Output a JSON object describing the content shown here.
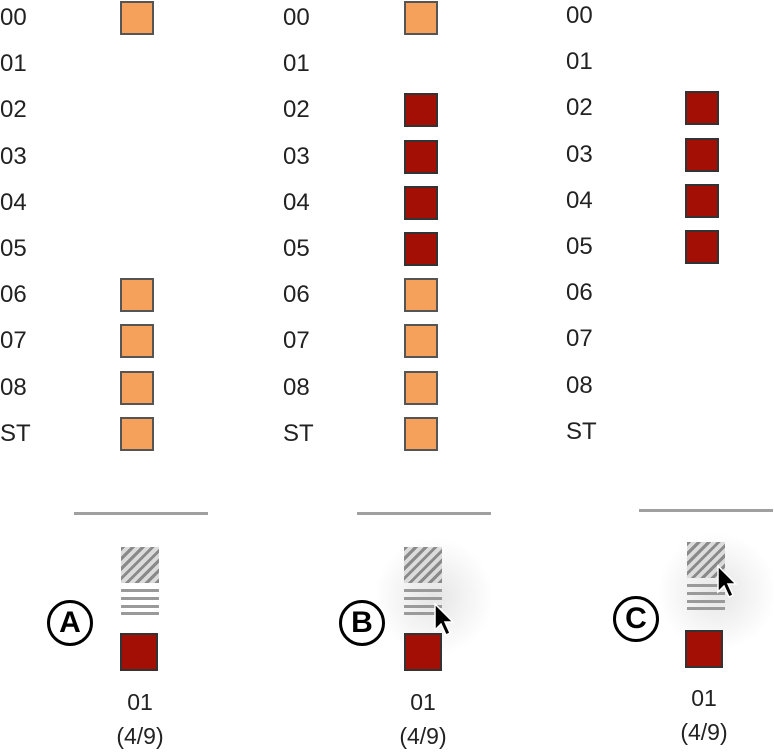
{
  "colors": {
    "visible_channel": "#f5a05b",
    "selected_channel": "#a30f05",
    "rule": "#a0a0a0"
  },
  "panels": [
    {
      "id": "A",
      "rows": [
        "00",
        "01",
        "02",
        "03",
        "04",
        "05",
        "06",
        "07",
        "08",
        "ST"
      ],
      "cells": [
        "orange",
        "none",
        "none",
        "none",
        "none",
        "none",
        "orange",
        "orange",
        "orange",
        "orange"
      ],
      "footer_channel": "01",
      "footer_count": "(4/9)",
      "cursor": false
    },
    {
      "id": "B",
      "rows": [
        "00",
        "01",
        "02",
        "03",
        "04",
        "05",
        "06",
        "07",
        "08",
        "ST"
      ],
      "cells": [
        "orange",
        "none",
        "red",
        "red",
        "red",
        "red",
        "orange",
        "orange",
        "orange",
        "orange"
      ],
      "footer_channel": "01",
      "footer_count": "(4/9)",
      "cursor": true
    },
    {
      "id": "C",
      "rows": [
        "00",
        "01",
        "02",
        "03",
        "04",
        "05",
        "06",
        "07",
        "08",
        "ST"
      ],
      "cells": [
        "none",
        "none",
        "red",
        "red",
        "red",
        "red",
        "none",
        "none",
        "none",
        "none"
      ],
      "footer_channel": "01",
      "footer_count": "(4/9)",
      "cursor": true
    }
  ]
}
